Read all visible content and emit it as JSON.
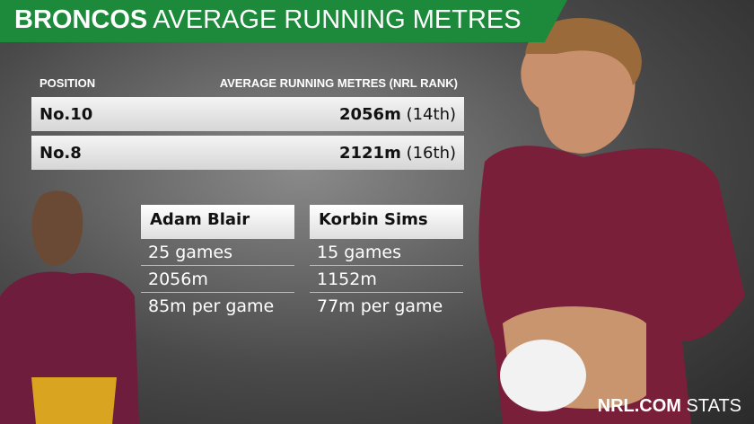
{
  "header": {
    "title_bold": "BRONCOS",
    "title_light": "AVERAGE RUNNING METRES"
  },
  "table": {
    "columns": [
      "POSITION",
      "AVERAGE RUNNING METRES (NRL RANK)"
    ],
    "rows": [
      [
        "No.10",
        "2056m",
        "(14th)"
      ],
      [
        "No.8",
        "2121m",
        "(16th)"
      ]
    ]
  },
  "players": [
    {
      "name": "Adam Blair",
      "stats": [
        "25 games",
        "2056m",
        "85m per game"
      ]
    },
    {
      "name": "Korbin Sims",
      "stats": [
        "15 games",
        "1152m",
        "77m per game"
      ]
    }
  ],
  "footer": {
    "brand": "NRL.COM",
    "label": "STATS"
  }
}
